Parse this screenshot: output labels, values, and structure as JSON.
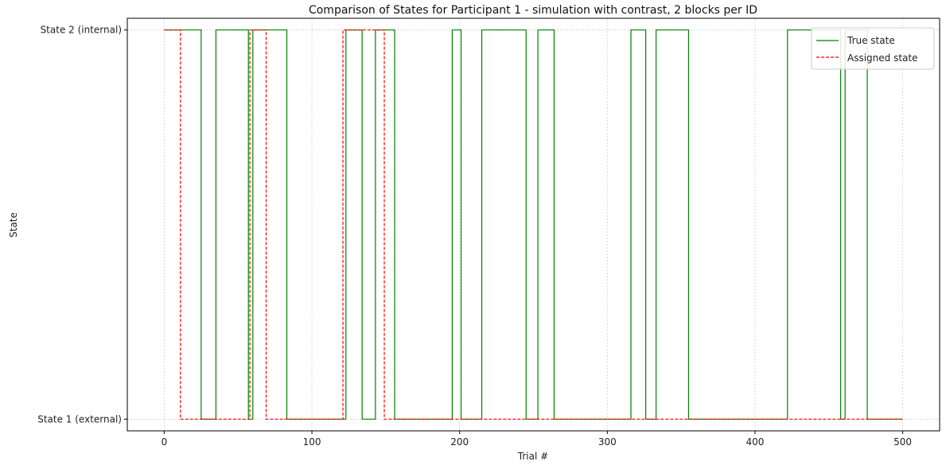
{
  "chart_data": {
    "type": "line",
    "title": "Comparison of States for Participant 1 - simulation with contrast, 2 blocks per ID",
    "xlabel": "Trial #",
    "ylabel": "State",
    "xlim": [
      -25,
      525
    ],
    "ylim": [
      0.97,
      2.03
    ],
    "xticks": [
      0,
      100,
      200,
      300,
      400,
      500
    ],
    "yticks": [
      1,
      2
    ],
    "ytick_labels": [
      "State 1 (external)",
      "State 2 (internal)"
    ],
    "grid": true,
    "legend_position": "top-right",
    "series": [
      {
        "name": "True state",
        "color": "#008000",
        "dashed": false,
        "x": [
          0,
          25,
          25,
          35,
          35,
          57,
          57,
          60,
          60,
          83,
          83,
          123,
          123,
          134,
          134,
          143,
          143,
          156,
          156,
          195,
          195,
          201,
          201,
          215,
          215,
          245,
          245,
          253,
          253,
          264,
          264,
          316,
          316,
          326,
          326,
          333,
          333,
          355,
          355,
          422,
          422,
          458,
          458,
          461,
          461,
          476,
          476,
          500
        ],
        "y": [
          2,
          2,
          1,
          1,
          2,
          2,
          1,
          1,
          2,
          2,
          1,
          1,
          2,
          2,
          1,
          1,
          2,
          2,
          1,
          1,
          2,
          2,
          1,
          1,
          2,
          2,
          1,
          1,
          2,
          2,
          1,
          1,
          2,
          2,
          1,
          1,
          2,
          2,
          1,
          1,
          2,
          2,
          1,
          1,
          2,
          2,
          1,
          1
        ]
      },
      {
        "name": "Assigned state",
        "color": "#ff0000",
        "dashed": true,
        "x": [
          0,
          11,
          11,
          58,
          58,
          69,
          69,
          121,
          121,
          149,
          149,
          500
        ],
        "y": [
          2,
          2,
          1,
          1,
          2,
          2,
          1,
          1,
          2,
          2,
          1,
          1
        ]
      }
    ]
  }
}
